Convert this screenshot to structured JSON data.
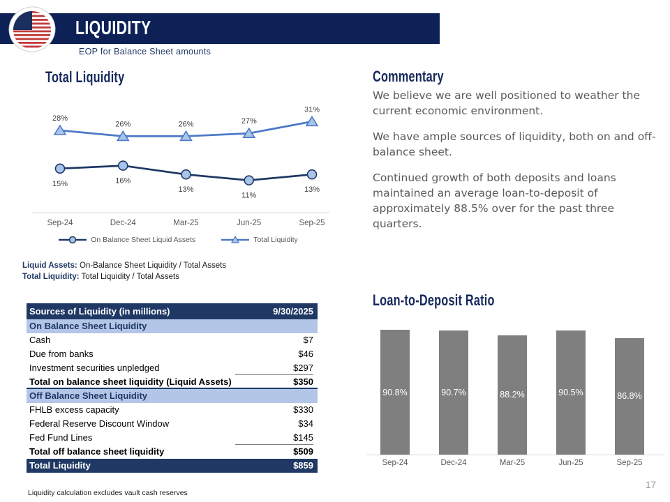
{
  "header": {
    "title": "LIQUIDITY",
    "subtitle": "EOP for Balance Sheet amounts"
  },
  "colors": {
    "banner_navy": "#0d2156",
    "table_navy": "#1f3864",
    "band_blue": "#b4c6e7",
    "line_blue": "#4d79c7",
    "line_navy": "#1f3864",
    "marker_fill": "#a9c4e9",
    "bar_gray": "#7f7f7f",
    "axis_gray": "#d9d9d9",
    "text_gray": "#595959"
  },
  "chart_data": [
    {
      "type": "line",
      "title": "Total Liquidity",
      "x": [
        "Sep-24",
        "Dec-24",
        "Mar-25",
        "Jun-25",
        "Sep-25"
      ],
      "series": [
        {
          "name": "On Balance Sheet Liquid Assets",
          "values": [
            15,
            16,
            13,
            11,
            13
          ],
          "labels": [
            "15%",
            "16%",
            "13%",
            "11%",
            "13%"
          ],
          "color": "#1f3864",
          "marker": "circle",
          "marker_fill": "#a9c4e9",
          "label_position": "below"
        },
        {
          "name": "Total Liquidity",
          "values": [
            28,
            26,
            26,
            27,
            31
          ],
          "labels": [
            "28%",
            "26%",
            "26%",
            "27%",
            "31%"
          ],
          "color": "#4d79c7",
          "marker": "triangle",
          "marker_fill": "#a9c4e9",
          "label_position": "above"
        }
      ],
      "ylim": [
        0,
        42
      ],
      "grid": false,
      "legend_position": "bottom"
    },
    {
      "type": "bar",
      "title": "Loan-to-Deposit Ratio",
      "categories": [
        "Sep-24",
        "Dec-24",
        "Mar-25",
        "Jun-25",
        "Sep-25"
      ],
      "values": [
        90.8,
        90.7,
        88.2,
        90.5,
        86.8
      ],
      "labels": [
        "90.8%",
        "90.7%",
        "88.2%",
        "90.5%",
        "86.8%"
      ],
      "bar_color": "#7f7f7f",
      "label_color": "#ffffff",
      "ylim": [
        30,
        97
      ],
      "grid": false
    }
  ],
  "notes": [
    {
      "bold": "Liquid Assets:",
      "text": " On-Balance Sheet Liquidity / Total Assets"
    },
    {
      "bold": "Total Liquidity:",
      "text": " Total Liquidity / Total Assets"
    }
  ],
  "table": {
    "header": {
      "label": "Sources of Liquidity (in millions)",
      "value": "9/30/2025"
    },
    "rows": [
      {
        "label": "On Balance Sheet Liquidity",
        "value": "",
        "style": "band"
      },
      {
        "label": "Cash",
        "value": "$7",
        "style": "normal"
      },
      {
        "label": "Due from banks",
        "value": "$46",
        "style": "normal"
      },
      {
        "label": "Investment securities unpledged",
        "value": "$297",
        "style": "underline"
      },
      {
        "label": "Total on balance sheet liquidity (Liquid Assets)",
        "value": "$350",
        "style": "total"
      },
      {
        "label": "Off Balance Sheet Liquidity",
        "value": "",
        "style": "band"
      },
      {
        "label": "FHLB excess capacity",
        "value": "$330",
        "style": "normal"
      },
      {
        "label": "Federal Reserve Discount Window",
        "value": "$34",
        "style": "normal"
      },
      {
        "label": "Fed Fund Lines",
        "value": "$145",
        "style": "underline"
      },
      {
        "label": "Total off balance sheet liquidity",
        "value": "$509",
        "style": "subtotal"
      },
      {
        "label": "Total Liquidity",
        "value": "$859",
        "style": "grand"
      }
    ]
  },
  "commentary": {
    "title": "Commentary",
    "paragraphs": [
      "We believe we are well positioned to weather the current economic environment.",
      "We have ample sources of liquidity, both on and off-balance sheet.",
      "Continued growth of both deposits and loans maintained an average loan-to-deposit of approximately 88.5% over for the past three quarters."
    ]
  },
  "footnote": "Liquidity calculation excludes vault cash reserves",
  "page_number": "17"
}
